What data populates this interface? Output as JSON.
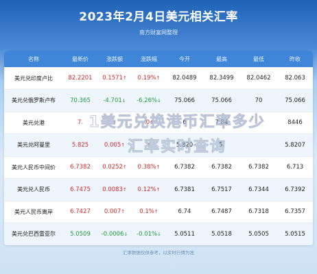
{
  "title": "2023年2月4日美元相关汇率",
  "subtitle": "南方财富网整理",
  "table": {
    "headers": [
      "名称",
      "最新价",
      "涨跌额",
      "涨跌幅",
      "今开",
      "最高",
      "最低",
      "昨收"
    ],
    "rows": [
      {
        "name": "美元兑印度卢比",
        "price": "82.2201",
        "change": "0.1571",
        "change_dir": "up",
        "pct": "0.19%",
        "pct_dir": "up",
        "open": "82.0489",
        "high": "82.3499",
        "low": "82.0462",
        "prev": "82.063"
      },
      {
        "name": "美元兑俄罗斯卢布",
        "price": "70.365",
        "change": "-4.701",
        "change_dir": "down",
        "pct": "-6.26%",
        "pct_dir": "down",
        "open": "75.066",
        "high": "75.066",
        "low": "70",
        "prev": "75.066"
      },
      {
        "name": "美元兑港",
        "price": "7.",
        "change": "",
        "change_dir": "up",
        "pct": ".0",
        "pct_dir": "up",
        "open": "6",
        "high": "7.84",
        "low": "",
        "prev": "8446"
      },
      {
        "name": "美元兑阿曼里",
        "price": "5.825",
        "change": "0.005",
        "change_dir": "up",
        "pct": "",
        "pct_dir": "up",
        "open": "5.820",
        "high": "5.",
        "low": "",
        "prev": "5.8207"
      },
      {
        "name": "美元人民币中间价",
        "price": "6.7382",
        "change": "0.0252",
        "change_dir": "up",
        "pct": "0.38%",
        "pct_dir": "up",
        "open": "6.7382",
        "high": "6.7382",
        "low": "6.7382",
        "prev": "6.713"
      },
      {
        "name": "美元兑人民币",
        "price": "6.7475",
        "change": "0.0083",
        "change_dir": "up",
        "pct": "0.12%",
        "pct_dir": "up",
        "open": "6.7381",
        "high": "6.7517",
        "low": "6.7344",
        "prev": "6.7392"
      },
      {
        "name": "美元人民币离岸",
        "price": "6.7427",
        "change": "0.007",
        "change_dir": "up",
        "pct": "0.1%",
        "pct_dir": "up",
        "open": "6.74",
        "high": "6.7487",
        "low": "6.7318",
        "prev": "6.7357"
      },
      {
        "name": "美元兑巴西雷亚尔",
        "price": "5.0509",
        "change": "-0.0006",
        "change_dir": "down",
        "pct": "-0.01%",
        "pct_dir": "down",
        "open": "5.0511",
        "high": "5.0518",
        "low": "5.0505",
        "prev": "5.0515"
      }
    ]
  },
  "footer": "汇率数据仅供参考，以实时行情为准",
  "watermark": {
    "line1": "1美元兑换港币汇率多少",
    "line2": "汇率实时查询"
  },
  "colors": {
    "up": "#d12a2a",
    "down": "#1f9a3a",
    "header": "#3f86d8"
  }
}
